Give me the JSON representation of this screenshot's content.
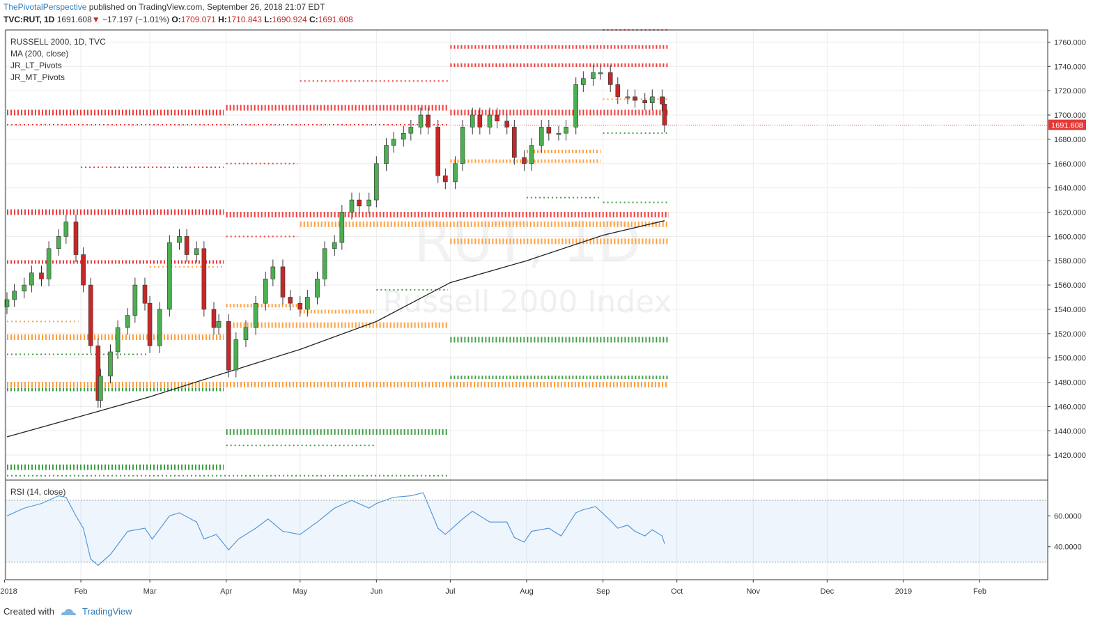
{
  "header": {
    "author": "ThePivotalPerspective",
    "published": "published on TradingView.com, September 26, 2018 21:07 EDT",
    "symbol": "TVC:RUT, 1D",
    "last": "1691.608",
    "down_arrow": "▼",
    "change": "−17.197 (−1.01%)",
    "o_label": "O:",
    "o_value": "1709.071",
    "h_label": "H:",
    "h_value": "1710.843",
    "l_label": "L:",
    "l_value": "1690.924",
    "c_label": "C:",
    "c_value": "1691.608"
  },
  "footer": {
    "created_with": "Created with",
    "brand": "TradingView"
  },
  "colors": {
    "up": "#4caf50",
    "down": "#c62828",
    "red_pivot": "#f23c3c",
    "orange_pivot": "#ffa040",
    "green_pivot": "#43a047",
    "ma": "#222222",
    "rsi": "#4a90d9",
    "price_tag": "#e53935"
  },
  "chart_data": {
    "type": "candlestick",
    "title": "RUSSELL 2000, 1D, TVC",
    "watermark": {
      "symbol": "RUT, 1D",
      "name": "Russell 2000 Index"
    },
    "legend": [
      "RUSSELL 2000, 1D, TVC",
      "MA (200, close)",
      "JR_LT_Pivots",
      "JR_MT_Pivots"
    ],
    "ylim": [
      1400,
      1770
    ],
    "yticks": [
      1420,
      1440,
      1460,
      1480,
      1500,
      1520,
      1540,
      1560,
      1580,
      1600,
      1620,
      1640,
      1660,
      1680,
      1700,
      1720,
      1740,
      1760
    ],
    "ytick_labels": [
      "1420.000",
      "1440.000",
      "1460.000",
      "1480.000",
      "1500.000",
      "1520.000",
      "1540.000",
      "1560.000",
      "1580.000",
      "1600.000",
      "1620.000",
      "1640.000",
      "1660.000",
      "1680.000",
      "1700.000",
      "1720.000",
      "1740.000",
      "1760.000"
    ],
    "last_price_label": "1691.608",
    "last_price": 1691.608,
    "xlabels": [
      "2018",
      "Feb",
      "Mar",
      "Apr",
      "May",
      "Jun",
      "Jul",
      "Aug",
      "Sep",
      "Oct",
      "Nov",
      "Dec",
      "2019",
      "Feb"
    ],
    "xlabel_dates": [
      "2018-01-01",
      "2018-02-01",
      "2018-03-01",
      "2018-04-01",
      "2018-05-01",
      "2018-06-01",
      "2018-07-01",
      "2018-08-01",
      "2018-09-01",
      "2018-10-01",
      "2018-11-01",
      "2018-12-01",
      "2019-01-01",
      "2019-02-01"
    ],
    "date_range": [
      "2018-01-02",
      "2019-02-28"
    ],
    "close_series": [
      [
        "2018-01-02",
        1548
      ],
      [
        "2018-01-05",
        1555
      ],
      [
        "2018-01-09",
        1560
      ],
      [
        "2018-01-12",
        1570
      ],
      [
        "2018-01-16",
        1565
      ],
      [
        "2018-01-19",
        1590
      ],
      [
        "2018-01-23",
        1600
      ],
      [
        "2018-01-26",
        1612
      ],
      [
        "2018-01-30",
        1585
      ],
      [
        "2018-02-02",
        1560
      ],
      [
        "2018-02-05",
        1510
      ],
      [
        "2018-02-08",
        1465
      ],
      [
        "2018-02-09",
        1485
      ],
      [
        "2018-02-13",
        1505
      ],
      [
        "2018-02-16",
        1525
      ],
      [
        "2018-02-20",
        1535
      ],
      [
        "2018-02-23",
        1560
      ],
      [
        "2018-02-27",
        1545
      ],
      [
        "2018-03-01",
        1510
      ],
      [
        "2018-03-05",
        1540
      ],
      [
        "2018-03-09",
        1595
      ],
      [
        "2018-03-13",
        1600
      ],
      [
        "2018-03-16",
        1585
      ],
      [
        "2018-03-20",
        1590
      ],
      [
        "2018-03-23",
        1540
      ],
      [
        "2018-03-27",
        1525
      ],
      [
        "2018-03-29",
        1530
      ],
      [
        "2018-04-02",
        1490
      ],
      [
        "2018-04-05",
        1515
      ],
      [
        "2018-04-09",
        1525
      ],
      [
        "2018-04-13",
        1545
      ],
      [
        "2018-04-17",
        1565
      ],
      [
        "2018-04-20",
        1575
      ],
      [
        "2018-04-24",
        1550
      ],
      [
        "2018-04-27",
        1545
      ],
      [
        "2018-05-01",
        1540
      ],
      [
        "2018-05-04",
        1550
      ],
      [
        "2018-05-08",
        1565
      ],
      [
        "2018-05-11",
        1590
      ],
      [
        "2018-05-15",
        1595
      ],
      [
        "2018-05-18",
        1620
      ],
      [
        "2018-05-22",
        1630
      ],
      [
        "2018-05-25",
        1625
      ],
      [
        "2018-05-29",
        1630
      ],
      [
        "2018-06-01",
        1660
      ],
      [
        "2018-06-05",
        1675
      ],
      [
        "2018-06-08",
        1680
      ],
      [
        "2018-06-12",
        1685
      ],
      [
        "2018-06-15",
        1690
      ],
      [
        "2018-06-19",
        1700
      ],
      [
        "2018-06-22",
        1690
      ],
      [
        "2018-06-26",
        1650
      ],
      [
        "2018-06-29",
        1645
      ],
      [
        "2018-07-03",
        1660
      ],
      [
        "2018-07-06",
        1690
      ],
      [
        "2018-07-10",
        1700
      ],
      [
        "2018-07-13",
        1690
      ],
      [
        "2018-07-17",
        1700
      ],
      [
        "2018-07-20",
        1695
      ],
      [
        "2018-07-24",
        1690
      ],
      [
        "2018-07-27",
        1665
      ],
      [
        "2018-07-31",
        1660
      ],
      [
        "2018-08-03",
        1675
      ],
      [
        "2018-08-07",
        1690
      ],
      [
        "2018-08-10",
        1685
      ],
      [
        "2018-08-14",
        1685
      ],
      [
        "2018-08-17",
        1690
      ],
      [
        "2018-08-21",
        1725
      ],
      [
        "2018-08-24",
        1730
      ],
      [
        "2018-08-28",
        1735
      ],
      [
        "2018-08-31",
        1735
      ],
      [
        "2018-09-04",
        1725
      ],
      [
        "2018-09-07",
        1715
      ],
      [
        "2018-09-11",
        1715
      ],
      [
        "2018-09-14",
        1712
      ],
      [
        "2018-09-18",
        1710
      ],
      [
        "2018-09-21",
        1715
      ],
      [
        "2018-09-25",
        1709
      ],
      [
        "2018-09-26",
        1691.608
      ]
    ],
    "ma_series": [
      [
        "2018-01-02",
        1435
      ],
      [
        "2018-02-01",
        1452
      ],
      [
        "2018-03-01",
        1468
      ],
      [
        "2018-04-01",
        1488
      ],
      [
        "2018-05-01",
        1507
      ],
      [
        "2018-06-01",
        1530
      ],
      [
        "2018-07-01",
        1562
      ],
      [
        "2018-08-01",
        1580
      ],
      [
        "2018-09-01",
        1601
      ],
      [
        "2018-09-26",
        1613
      ]
    ],
    "pivot_levels": [
      {
        "color": "red",
        "value": 1702,
        "from": "2018-01-02",
        "to": "2018-03-31",
        "weight": "heavy"
      },
      {
        "color": "red",
        "value": 1706,
        "from": "2018-04-01",
        "to": "2018-06-30",
        "weight": "heavy"
      },
      {
        "color": "red",
        "value": 1702,
        "from": "2018-07-01",
        "to": "2018-09-26",
        "weight": "heavy"
      },
      {
        "color": "red",
        "value": 1692,
        "from": "2018-01-02",
        "to": "2018-06-30",
        "weight": "light"
      },
      {
        "color": "red",
        "value": 1756,
        "from": "2018-07-01",
        "to": "2018-09-26",
        "weight": "medium"
      },
      {
        "color": "red",
        "value": 1741,
        "from": "2018-07-01",
        "to": "2018-09-26",
        "weight": "medium"
      },
      {
        "color": "red",
        "value": 1770,
        "from": "2018-09-01",
        "to": "2018-09-26",
        "weight": "light"
      },
      {
        "color": "red",
        "value": 1728,
        "from": "2018-05-01",
        "to": "2018-06-30",
        "weight": "light"
      },
      {
        "color": "red",
        "value": 1657,
        "from": "2018-02-01",
        "to": "2018-03-31",
        "weight": "light"
      },
      {
        "color": "red",
        "value": 1660,
        "from": "2018-04-01",
        "to": "2018-04-30",
        "weight": "light"
      },
      {
        "color": "red",
        "value": 1620,
        "from": "2018-01-02",
        "to": "2018-03-31",
        "weight": "heavy"
      },
      {
        "color": "red",
        "value": 1618,
        "from": "2018-04-01",
        "to": "2018-09-26",
        "weight": "heavy"
      },
      {
        "color": "red",
        "value": 1579,
        "from": "2018-01-02",
        "to": "2018-03-31",
        "weight": "medium"
      },
      {
        "color": "red",
        "value": 1600,
        "from": "2018-04-01",
        "to": "2018-04-30",
        "weight": "light"
      },
      {
        "color": "orange",
        "value": 1478,
        "from": "2018-01-02",
        "to": "2018-09-26",
        "weight": "heavy"
      },
      {
        "color": "orange",
        "value": 1517,
        "from": "2018-01-02",
        "to": "2018-03-31",
        "weight": "heavy"
      },
      {
        "color": "orange",
        "value": 1527,
        "from": "2018-04-01",
        "to": "2018-06-30",
        "weight": "heavy"
      },
      {
        "color": "orange",
        "value": 1543,
        "from": "2018-04-01",
        "to": "2018-04-30",
        "weight": "medium"
      },
      {
        "color": "orange",
        "value": 1538,
        "from": "2018-05-01",
        "to": "2018-05-31",
        "weight": "medium"
      },
      {
        "color": "orange",
        "value": 1530,
        "from": "2018-01-02",
        "to": "2018-01-31",
        "weight": "light"
      },
      {
        "color": "orange",
        "value": 1610,
        "from": "2018-05-01",
        "to": "2018-09-26",
        "weight": "heavy"
      },
      {
        "color": "orange",
        "value": 1596,
        "from": "2018-07-01",
        "to": "2018-09-26",
        "weight": "heavy"
      },
      {
        "color": "orange",
        "value": 1662,
        "from": "2018-07-01",
        "to": "2018-08-31",
        "weight": "medium"
      },
      {
        "color": "orange",
        "value": 1670,
        "from": "2018-08-01",
        "to": "2018-08-31",
        "weight": "medium"
      },
      {
        "color": "orange",
        "value": 1713,
        "from": "2018-09-01",
        "to": "2018-09-26",
        "weight": "light"
      },
      {
        "color": "orange",
        "value": 1575,
        "from": "2018-03-01",
        "to": "2018-03-31",
        "weight": "light"
      },
      {
        "color": "green",
        "value": 1474,
        "from": "2018-01-02",
        "to": "2018-03-31",
        "weight": "medium"
      },
      {
        "color": "green",
        "value": 1439,
        "from": "2018-04-01",
        "to": "2018-06-30",
        "weight": "heavy"
      },
      {
        "color": "green",
        "value": 1410,
        "from": "2018-01-02",
        "to": "2018-03-31",
        "weight": "heavy"
      },
      {
        "color": "green",
        "value": 1403,
        "from": "2018-01-02",
        "to": "2018-06-30",
        "weight": "light"
      },
      {
        "color": "green",
        "value": 1515,
        "from": "2018-07-01",
        "to": "2018-09-26",
        "weight": "heavy"
      },
      {
        "color": "green",
        "value": 1484,
        "from": "2018-07-01",
        "to": "2018-09-26",
        "weight": "medium"
      },
      {
        "color": "green",
        "value": 1428,
        "from": "2018-04-01",
        "to": "2018-05-31",
        "weight": "light"
      },
      {
        "color": "green",
        "value": 1503,
        "from": "2018-01-02",
        "to": "2018-02-28",
        "weight": "light"
      },
      {
        "color": "green",
        "value": 1556,
        "from": "2018-06-01",
        "to": "2018-06-30",
        "weight": "light"
      },
      {
        "color": "green",
        "value": 1632,
        "from": "2018-08-01",
        "to": "2018-08-31",
        "weight": "light"
      },
      {
        "color": "green",
        "value": 1685,
        "from": "2018-09-01",
        "to": "2018-09-26",
        "weight": "light"
      },
      {
        "color": "green",
        "value": 1628,
        "from": "2018-09-01",
        "to": "2018-09-26",
        "weight": "light"
      }
    ],
    "rsi": {
      "label": "RSI (14, close)",
      "ylim": [
        25,
        80
      ],
      "yticks": [
        40,
        60
      ],
      "ytick_labels": [
        "40.0000",
        "60.0000"
      ],
      "band": [
        30,
        70
      ],
      "series": [
        [
          "2018-01-02",
          60
        ],
        [
          "2018-01-09",
          65
        ],
        [
          "2018-01-16",
          68
        ],
        [
          "2018-01-23",
          73
        ],
        [
          "2018-01-26",
          72
        ],
        [
          "2018-01-30",
          60
        ],
        [
          "2018-02-02",
          52
        ],
        [
          "2018-02-05",
          32
        ],
        [
          "2018-02-08",
          28
        ],
        [
          "2018-02-13",
          35
        ],
        [
          "2018-02-20",
          50
        ],
        [
          "2018-02-27",
          52
        ],
        [
          "2018-03-02",
          45
        ],
        [
          "2018-03-09",
          60
        ],
        [
          "2018-03-13",
          62
        ],
        [
          "2018-03-20",
          56
        ],
        [
          "2018-03-23",
          45
        ],
        [
          "2018-03-28",
          48
        ],
        [
          "2018-04-02",
          38
        ],
        [
          "2018-04-06",
          45
        ],
        [
          "2018-04-13",
          52
        ],
        [
          "2018-04-18",
          58
        ],
        [
          "2018-04-24",
          50
        ],
        [
          "2018-05-01",
          48
        ],
        [
          "2018-05-08",
          56
        ],
        [
          "2018-05-15",
          65
        ],
        [
          "2018-05-22",
          70
        ],
        [
          "2018-05-29",
          65
        ],
        [
          "2018-06-01",
          68
        ],
        [
          "2018-06-08",
          72
        ],
        [
          "2018-06-15",
          73
        ],
        [
          "2018-06-20",
          75
        ],
        [
          "2018-06-26",
          52
        ],
        [
          "2018-06-29",
          48
        ],
        [
          "2018-07-06",
          58
        ],
        [
          "2018-07-10",
          63
        ],
        [
          "2018-07-17",
          56
        ],
        [
          "2018-07-24",
          56
        ],
        [
          "2018-07-27",
          46
        ],
        [
          "2018-07-31",
          43
        ],
        [
          "2018-08-03",
          50
        ],
        [
          "2018-08-10",
          52
        ],
        [
          "2018-08-15",
          47
        ],
        [
          "2018-08-21",
          62
        ],
        [
          "2018-08-24",
          64
        ],
        [
          "2018-08-29",
          66
        ],
        [
          "2018-09-04",
          57
        ],
        [
          "2018-09-07",
          52
        ],
        [
          "2018-09-11",
          54
        ],
        [
          "2018-09-14",
          50
        ],
        [
          "2018-09-18",
          47
        ],
        [
          "2018-09-21",
          51
        ],
        [
          "2018-09-25",
          47
        ],
        [
          "2018-09-26",
          42
        ]
      ]
    }
  }
}
